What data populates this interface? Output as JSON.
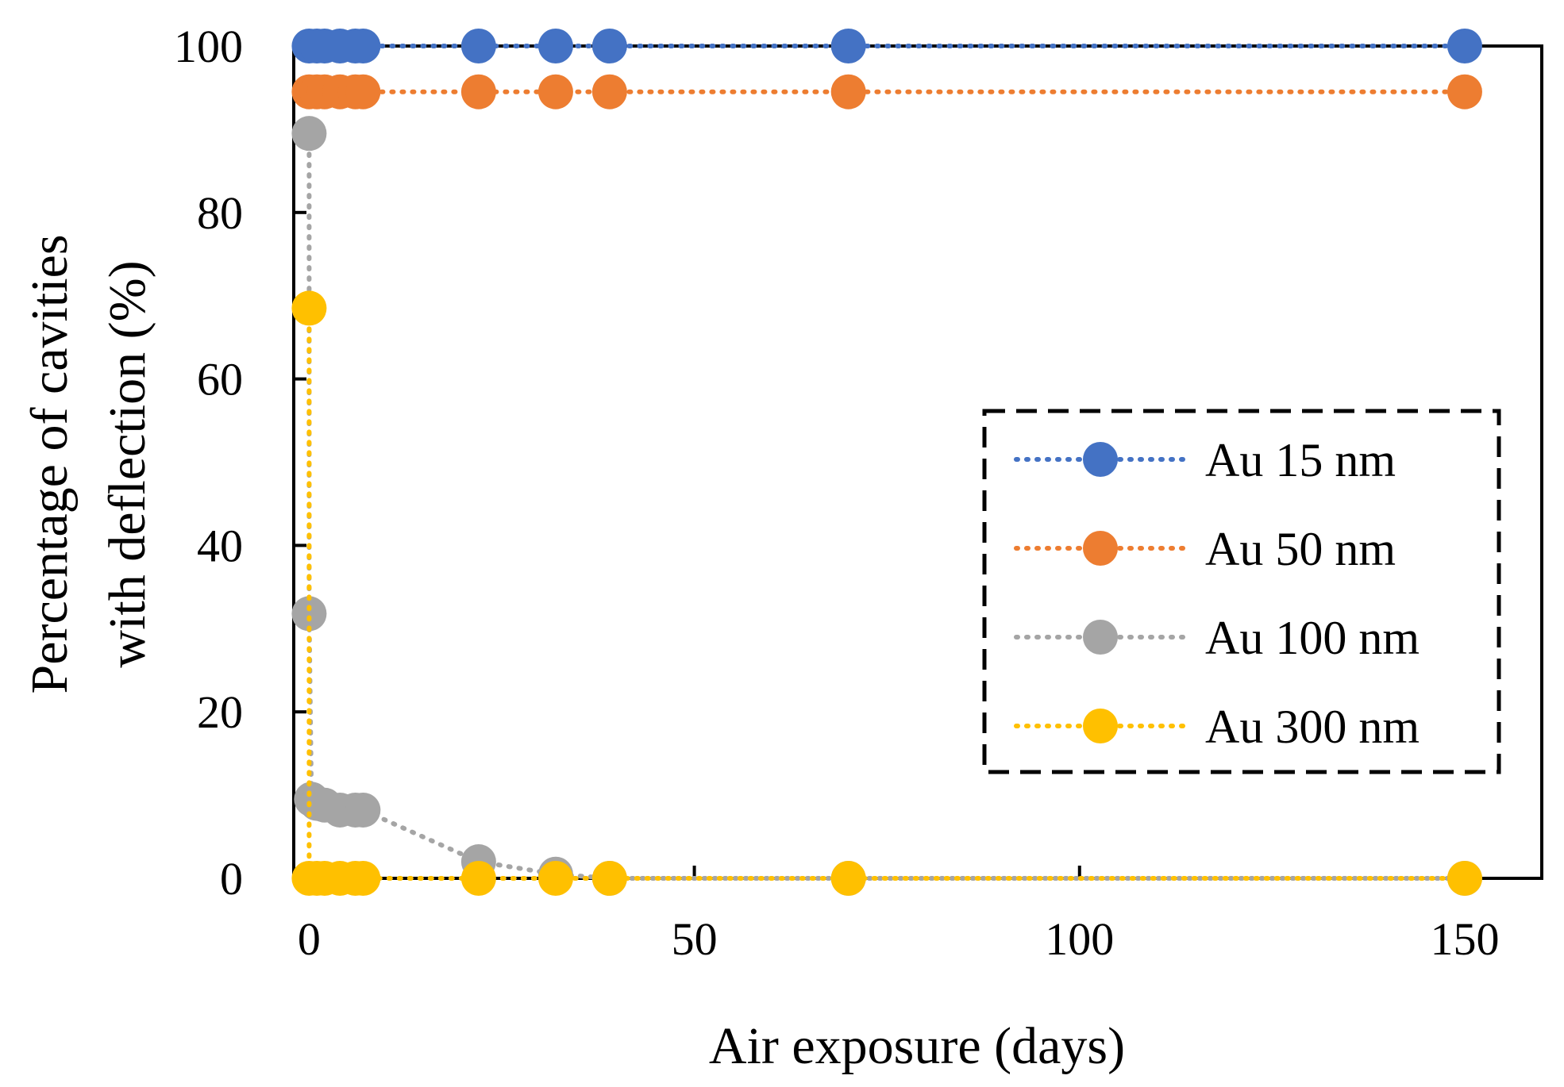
{
  "chart_data": {
    "type": "line",
    "title": "",
    "xlabel": "Air exposure (days)",
    "ylabel_lines": [
      "Percentage of cavities",
      "with deflection (%)"
    ],
    "xlim": [
      -2,
      160
    ],
    "ylim": [
      0,
      100
    ],
    "x_ticks": [
      0,
      50,
      100,
      150
    ],
    "y_ticks": [
      0,
      20,
      40,
      60,
      80,
      100
    ],
    "grid": false,
    "line_style": "dotted",
    "legend_position": "right-middle",
    "series": [
      {
        "name": "Au 15 nm",
        "color": "#4472C4",
        "x": [
          0,
          1,
          2,
          4,
          6,
          7,
          22,
          32,
          39,
          70,
          150
        ],
        "y": [
          100,
          100,
          100,
          100,
          100,
          100,
          100,
          100,
          100,
          100,
          100
        ]
      },
      {
        "name": "Au 50 nm",
        "color": "#ED7D31",
        "x": [
          0,
          1,
          2,
          4,
          6,
          7,
          22,
          32,
          39,
          70,
          150
        ],
        "y": [
          94.5,
          94.5,
          94.5,
          94.5,
          94.5,
          94.5,
          94.5,
          94.5,
          94.5,
          94.5,
          94.5
        ]
      },
      {
        "name": "Au 100 nm",
        "color": "#A5A5A5",
        "x": [
          0,
          0,
          0.3,
          1,
          2,
          4,
          6,
          7,
          22,
          32,
          39,
          70,
          150
        ],
        "y": [
          89.5,
          31.8,
          9.5,
          9,
          8.8,
          8.2,
          8.2,
          8.2,
          2,
          0.5,
          0,
          0,
          0
        ]
      },
      {
        "name": "Au 300 nm",
        "color": "#FFC000",
        "x": [
          0,
          0,
          1,
          2,
          4,
          6,
          7,
          22,
          32,
          39,
          70,
          150
        ],
        "y": [
          68.5,
          0,
          0,
          0,
          0,
          0,
          0,
          0,
          0,
          0,
          0,
          0
        ]
      }
    ]
  }
}
